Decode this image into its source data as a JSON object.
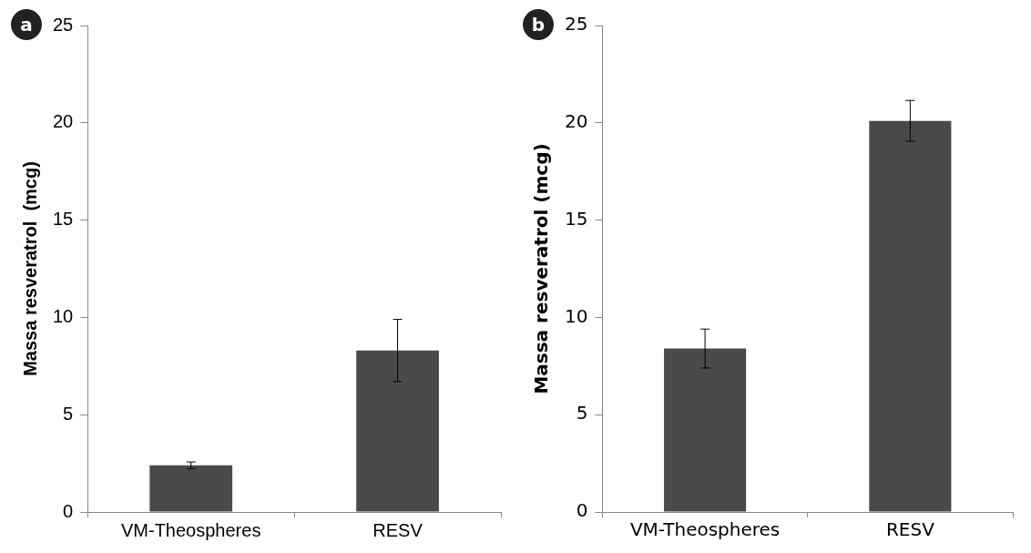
{
  "chart_data": [
    {
      "type": "bar",
      "annotations": [
        "a"
      ],
      "ylabel": "Massa resveratrol  (mcg)",
      "categories": [
        "VM-Theospheres",
        "RESV"
      ],
      "values": [
        2.4,
        8.3
      ],
      "errors": [
        0.17,
        1.6
      ],
      "color": "#4a4a4a",
      "ylim": [
        0,
        25
      ],
      "yticks": [
        0,
        5,
        10,
        15,
        20,
        25
      ]
    },
    {
      "type": "bar",
      "annotations": [
        "b"
      ],
      "ylabel": "Massa resveratrol (mcg)",
      "categories": [
        "VM-Theospheres",
        "RESV"
      ],
      "values": [
        8.4,
        20.1
      ],
      "errors": [
        1.0,
        1.05
      ],
      "color": "#4a4a4a",
      "ylim": [
        0,
        25
      ],
      "yticks": [
        0,
        5,
        10,
        15,
        20,
        25
      ]
    }
  ]
}
